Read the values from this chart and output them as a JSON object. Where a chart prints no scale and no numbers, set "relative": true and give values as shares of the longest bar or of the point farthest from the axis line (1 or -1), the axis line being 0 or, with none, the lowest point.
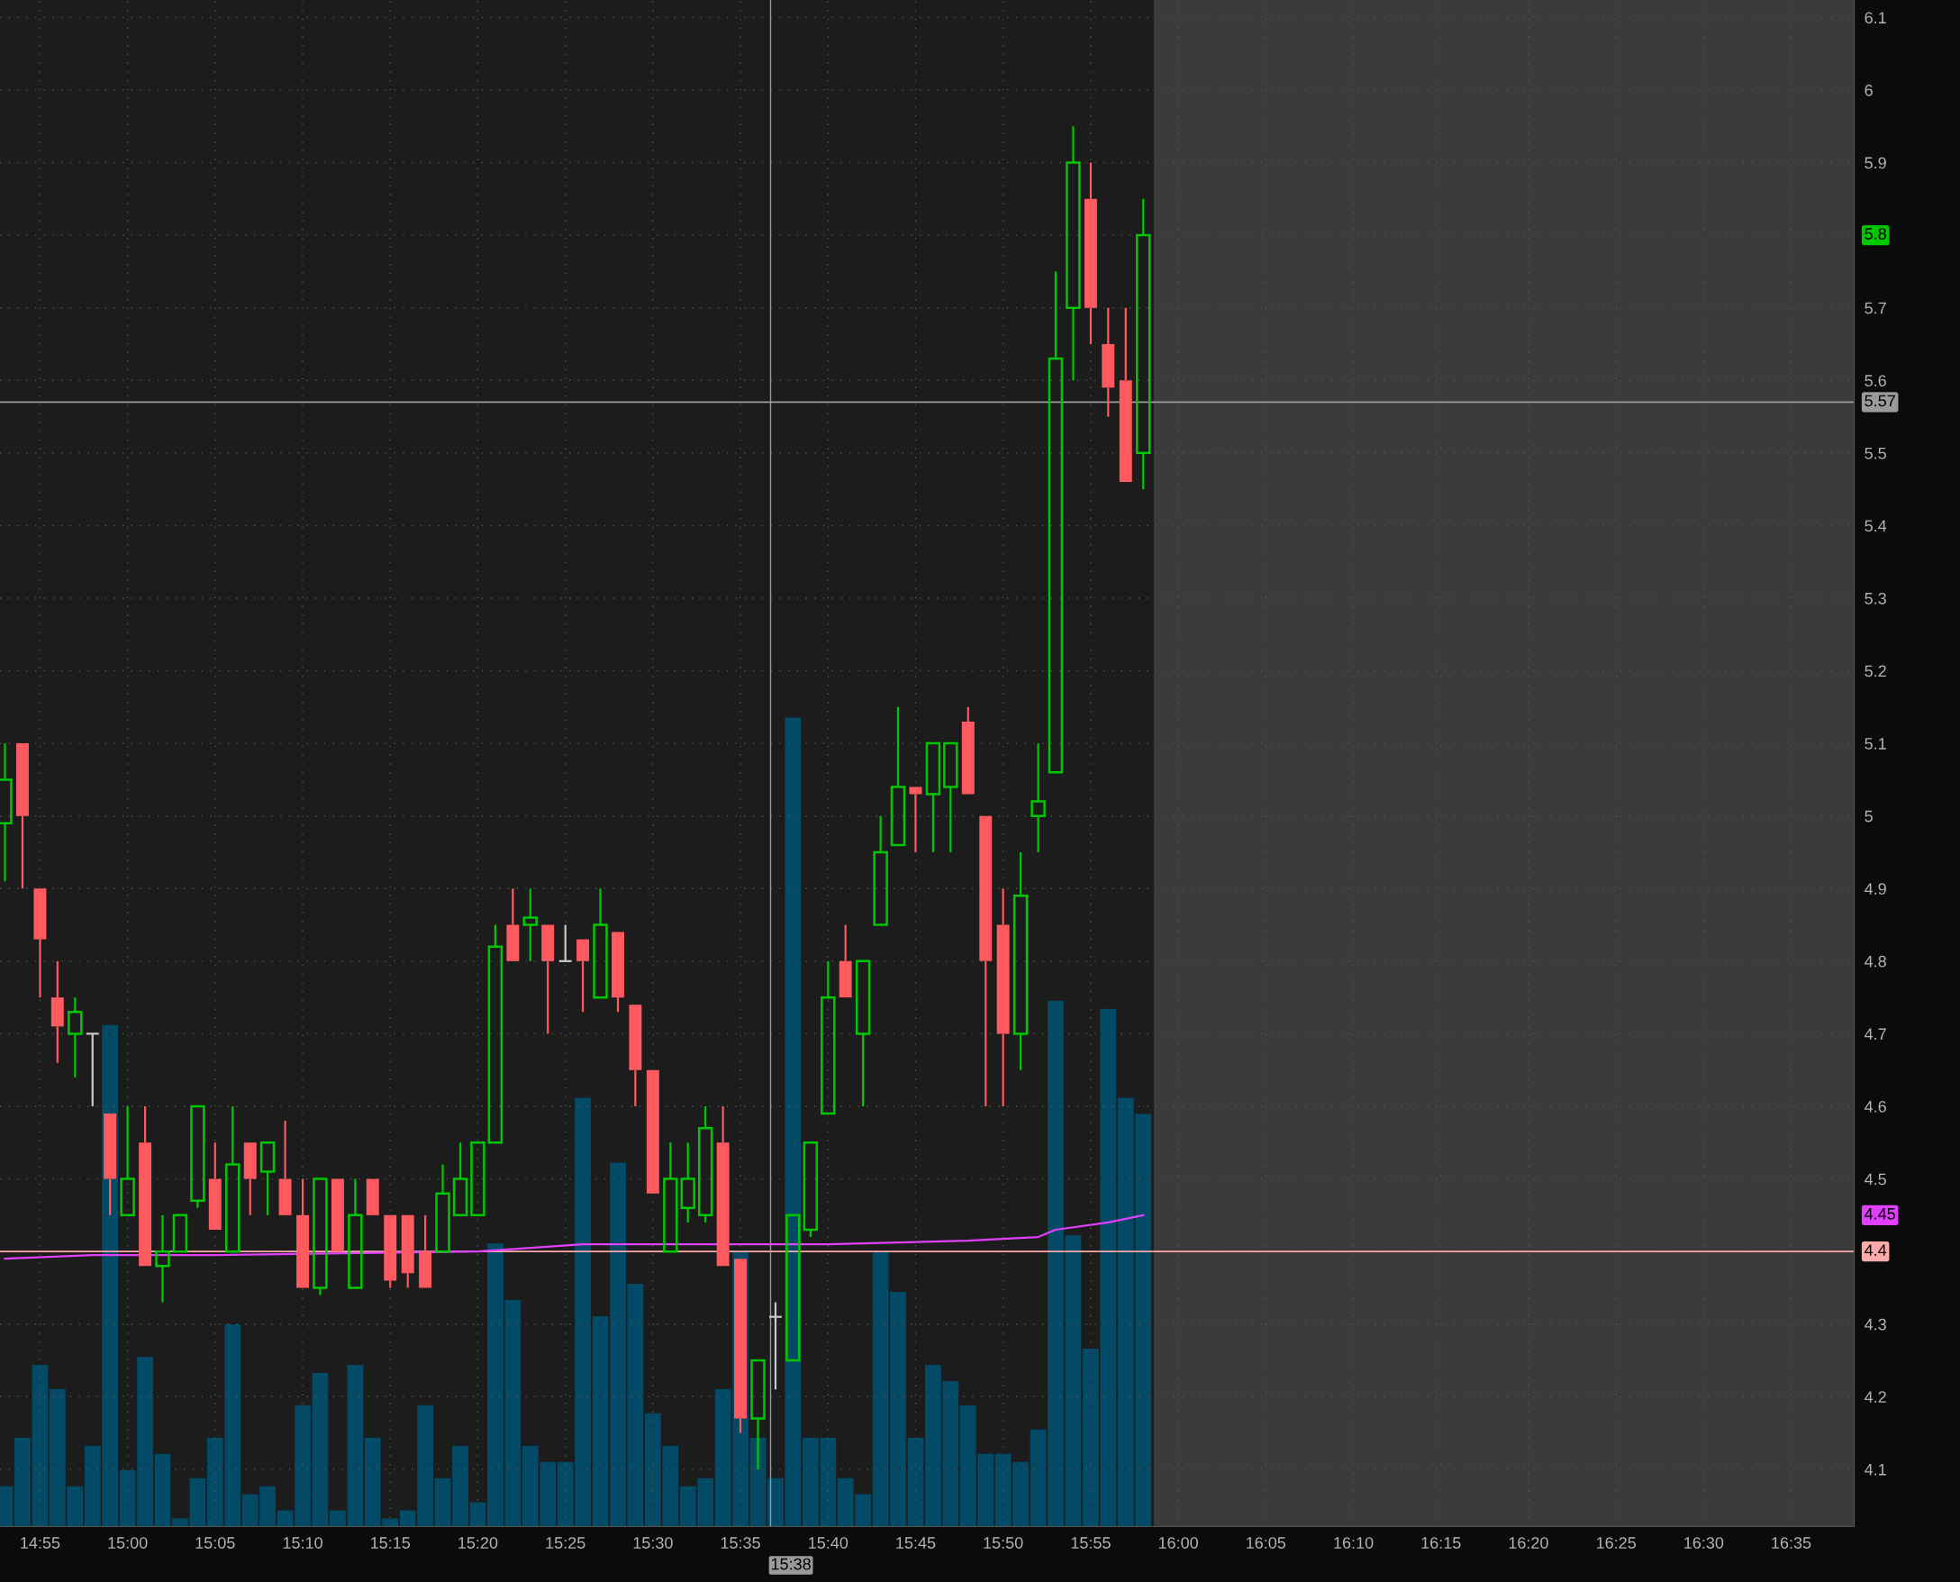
{
  "chart_data": [
    {
      "type": "candlestick",
      "x": [
        14.8833,
        14.9,
        14.9167,
        14.9333,
        14.95,
        14.9667,
        14.9833,
        15,
        15.0167,
        15.0333,
        15.05,
        15.0667,
        15.0833,
        15.1,
        15.1167,
        15.1333,
        15.15,
        15.1667,
        15.1833,
        15.2,
        15.2167,
        15.2333,
        15.25,
        15.2667,
        15.2833,
        15.3,
        15.3167,
        15.3333,
        15.35,
        15.3667,
        15.3833,
        15.4,
        15.4167,
        15.4333,
        15.45,
        15.4667,
        15.4833,
        15.5,
        15.5167,
        15.5333,
        15.55,
        15.5667,
        15.5833,
        15.6,
        15.6167,
        15.6333,
        15.65,
        15.6667,
        15.6833,
        15.7,
        15.7167,
        15.7333,
        15.75,
        15.7667,
        15.7833,
        15.8,
        15.8167,
        15.8333,
        15.85,
        15.8667,
        15.8833,
        15.9,
        15.9167,
        15.9333,
        15.95,
        15.9667
      ],
      "ohlc": [
        [
          4.99,
          5.1,
          4.91,
          5.05
        ],
        [
          5.1,
          5.1,
          4.9,
          5.0
        ],
        [
          4.9,
          4.9,
          4.75,
          4.83
        ],
        [
          4.75,
          4.8,
          4.66,
          4.71
        ],
        [
          4.7,
          4.75,
          4.64,
          4.73
        ],
        [
          4.7,
          4.7,
          4.6,
          4.7
        ],
        [
          4.59,
          4.59,
          4.45,
          4.5
        ],
        [
          4.45,
          4.6,
          4.45,
          4.5
        ],
        [
          4.55,
          4.6,
          4.38,
          4.38
        ],
        [
          4.38,
          4.45,
          4.33,
          4.4
        ],
        [
          4.4,
          4.45,
          4.4,
          4.45
        ],
        [
          4.47,
          4.6,
          4.46,
          4.6
        ],
        [
          4.5,
          4.55,
          4.43,
          4.43
        ],
        [
          4.4,
          4.6,
          4.4,
          4.52
        ],
        [
          4.55,
          4.55,
          4.45,
          4.5
        ],
        [
          4.51,
          4.55,
          4.45,
          4.55
        ],
        [
          4.5,
          4.58,
          4.45,
          4.45
        ],
        [
          4.45,
          4.5,
          4.35,
          4.35
        ],
        [
          4.35,
          4.5,
          4.34,
          4.5
        ],
        [
          4.5,
          4.5,
          4.4,
          4.4
        ],
        [
          4.35,
          4.5,
          4.35,
          4.45
        ],
        [
          4.5,
          4.5,
          4.45,
          4.45
        ],
        [
          4.45,
          4.45,
          4.35,
          4.36
        ],
        [
          4.45,
          4.45,
          4.35,
          4.37
        ],
        [
          4.4,
          4.45,
          4.35,
          4.35
        ],
        [
          4.4,
          4.52,
          4.4,
          4.48
        ],
        [
          4.45,
          4.55,
          4.45,
          4.5
        ],
        [
          4.45,
          4.55,
          4.45,
          4.55
        ],
        [
          4.55,
          4.85,
          4.55,
          4.82
        ],
        [
          4.85,
          4.9,
          4.8,
          4.8
        ],
        [
          4.85,
          4.9,
          4.8,
          4.86
        ],
        [
          4.85,
          4.85,
          4.7,
          4.8
        ],
        [
          4.8,
          4.85,
          4.8,
          4.8
        ],
        [
          4.83,
          4.83,
          4.73,
          4.8
        ],
        [
          4.75,
          4.9,
          4.75,
          4.85
        ],
        [
          4.84,
          4.84,
          4.73,
          4.75
        ],
        [
          4.74,
          4.74,
          4.6,
          4.65
        ],
        [
          4.65,
          4.65,
          4.48,
          4.48
        ],
        [
          4.4,
          4.55,
          4.4,
          4.5
        ],
        [
          4.46,
          4.55,
          4.44,
          4.5
        ],
        [
          4.45,
          4.6,
          4.44,
          4.57
        ],
        [
          4.55,
          4.6,
          4.38,
          4.38
        ],
        [
          4.39,
          4.39,
          4.15,
          4.17
        ],
        [
          4.17,
          4.25,
          4.1,
          4.25
        ],
        [
          4.31,
          4.33,
          4.21,
          4.31
        ],
        [
          4.25,
          4.45,
          4.25,
          4.45
        ],
        [
          4.43,
          4.55,
          4.42,
          4.55
        ],
        [
          4.59,
          4.8,
          4.59,
          4.75
        ],
        [
          4.8,
          4.85,
          4.75,
          4.75
        ],
        [
          4.7,
          4.8,
          4.6,
          4.8
        ],
        [
          4.85,
          5.0,
          4.85,
          4.95
        ],
        [
          4.96,
          5.15,
          4.96,
          5.04
        ],
        [
          5.04,
          5.04,
          4.95,
          5.03
        ],
        [
          5.03,
          5.1,
          4.95,
          5.1
        ],
        [
          5.04,
          5.1,
          4.95,
          5.1
        ],
        [
          5.13,
          5.15,
          5.03,
          5.03
        ],
        [
          5.0,
          5.0,
          4.6,
          4.8
        ],
        [
          4.85,
          4.9,
          4.6,
          4.7
        ],
        [
          4.7,
          4.95,
          4.65,
          4.89
        ],
        [
          5.0,
          5.1,
          4.95,
          5.02
        ],
        [
          5.06,
          5.75,
          5.06,
          5.63
        ],
        [
          5.7,
          5.95,
          5.6,
          5.9
        ],
        [
          5.85,
          5.9,
          5.65,
          5.7
        ],
        [
          5.65,
          5.7,
          5.55,
          5.59
        ],
        [
          5.6,
          5.7,
          5.46,
          5.46
        ],
        [
          5.5,
          5.85,
          5.45,
          5.8
        ]
      ],
      "colors": [
        "#00c800",
        "#ff5a5f",
        "#ff5a5f",
        "#ff5a5f",
        "#00c800",
        "#c8c8c8",
        "#ff5a5f",
        "#00c800",
        "#ff5a5f",
        "#00c800",
        "#00c800",
        "#00c800",
        "#ff5a5f",
        "#00c800",
        "#ff5a5f",
        "#00c800",
        "#ff5a5f",
        "#ff5a5f",
        "#00c800",
        "#ff5a5f",
        "#00c800",
        "#ff5a5f",
        "#ff5a5f",
        "#ff5a5f",
        "#ff5a5f",
        "#00c800",
        "#00c800",
        "#00c800",
        "#00c800",
        "#ff5a5f",
        "#00c800",
        "#ff5a5f",
        "#c8c8c8",
        "#ff5a5f",
        "#00c800",
        "#ff5a5f",
        "#ff5a5f",
        "#ff5a5f",
        "#00c800",
        "#00c800",
        "#00c800",
        "#ff5a5f",
        "#ff5a5f",
        "#00c800",
        "#c8c8c8",
        "#00c800",
        "#00c800",
        "#00c800",
        "#ff5a5f",
        "#00c800",
        "#00c800",
        "#00c800",
        "#ff5a5f",
        "#00c800",
        "#00c800",
        "#ff5a5f",
        "#ff5a5f",
        "#ff5a5f",
        "#00c800",
        "#00c800",
        "#00c800",
        "#00c800",
        "#ff5a5f",
        "#ff5a5f",
        "#ff5a5f",
        "#00c800"
      ],
      "series": [
        {
          "type": "line",
          "color": "#e040fb",
          "x": [
            14.8833,
            14.9667,
            15.0833,
            15.3333,
            15.4333,
            15.55,
            15.6667,
            15.8,
            15.8667,
            15.8833,
            15.9333,
            15.9667
          ],
          "values": [
            4.39,
            4.395,
            4.395,
            4.4,
            4.41,
            4.41,
            4.41,
            4.415,
            4.42,
            4.43,
            4.44,
            4.45
          ]
        }
      ],
      "xlim": [
        14.8786,
        16.6433
      ],
      "xticks": [
        {
          "value": 14.9167,
          "label": "14:55"
        },
        {
          "value": 15,
          "label": "15:00"
        },
        {
          "value": 15.0833,
          "label": "15:05"
        },
        {
          "value": 15.1667,
          "label": "15:10"
        },
        {
          "value": 15.25,
          "label": "15:15"
        },
        {
          "value": 15.3333,
          "label": "15:20"
        },
        {
          "value": 15.4167,
          "label": "15:25"
        },
        {
          "value": 15.5,
          "label": "15:30"
        },
        {
          "value": 15.5833,
          "label": "15:35"
        },
        {
          "value": 15.6667,
          "label": "15:40"
        },
        {
          "value": 15.75,
          "label": "15:45"
        },
        {
          "value": 15.8333,
          "label": "15:50"
        },
        {
          "value": 15.9167,
          "label": "15:55"
        },
        {
          "value": 16,
          "label": "16:00"
        },
        {
          "value": 16.0833,
          "label": "16:05"
        },
        {
          "value": 16.1667,
          "label": "16:10"
        },
        {
          "value": 16.25,
          "label": "16:15"
        },
        {
          "value": 16.3333,
          "label": "16:20"
        },
        {
          "value": 16.4167,
          "label": "16:25"
        },
        {
          "value": 16.5,
          "label": "16:30"
        },
        {
          "value": 16.5833,
          "label": "16:35"
        }
      ],
      "ylim": [
        4.021,
        6.124
      ],
      "yticks": [
        4.1,
        4.2,
        4.3,
        4.4,
        4.5,
        4.6,
        4.7,
        4.8,
        4.9,
        5,
        5.1,
        5.2,
        5.3,
        5.4,
        5.5,
        5.6,
        5.7,
        5.8,
        5.9,
        6,
        6.1
      ],
      "grid": true,
      "ref_lines": [
        {
          "axis": "y",
          "value": 4.4,
          "label": "4.4",
          "color": "#ffaaaa"
        },
        {
          "axis": "y",
          "value": 5.57,
          "label": "5.57",
          "color": "#9a9a9a"
        },
        {
          "axis": "x",
          "value": 15.612,
          "color": "#9a9a9a"
        }
      ],
      "bands": [
        {
          "axis": "x",
          "from": 15.9767,
          "to": 16.6433,
          "color": "#3b3b3b"
        }
      ],
      "annotations": [
        "5.8",
        "4.45",
        "15:38"
      ]
    },
    {
      "type": "bar",
      "relative": true,
      "color": "#034a66",
      "xlim": [
        14.8786,
        16.6433
      ],
      "x": [
        14.8833,
        14.9,
        14.9167,
        14.9333,
        14.95,
        14.9667,
        14.9833,
        15,
        15.0167,
        15.0333,
        15.05,
        15.0667,
        15.0833,
        15.1,
        15.1167,
        15.1333,
        15.15,
        15.1667,
        15.1833,
        15.2,
        15.2167,
        15.2333,
        15.25,
        15.2667,
        15.2833,
        15.3,
        15.3167,
        15.3333,
        15.35,
        15.3667,
        15.3833,
        15.4,
        15.4167,
        15.4333,
        15.45,
        15.4667,
        15.4833,
        15.5,
        15.5167,
        15.5333,
        15.55,
        15.5667,
        15.5833,
        15.6,
        15.6167,
        15.6333,
        15.65,
        15.6667,
        15.6833,
        15.7,
        15.7167,
        15.7333,
        15.75,
        15.7667,
        15.7833,
        15.8,
        15.8167,
        15.8333,
        15.85,
        15.8667,
        15.8833,
        15.9,
        15.9167,
        15.9333,
        15.95,
        15.9667
      ],
      "values": [
        0.05,
        0.11,
        0.2,
        0.17,
        0.05,
        0.1,
        0.62,
        0.07,
        0.21,
        0.09,
        0.01,
        0.06,
        0.11,
        0.25,
        0.04,
        0.05,
        0.02,
        0.15,
        0.19,
        0.02,
        0.2,
        0.11,
        0.01,
        0.02,
        0.15,
        0.06,
        0.1,
        0.03,
        0.35,
        0.28,
        0.1,
        0.08,
        0.08,
        0.53,
        0.26,
        0.45,
        0.3,
        0.14,
        0.1,
        0.05,
        0.06,
        0.17,
        0.34,
        0.11,
        0.06,
        1,
        0.11,
        0.11,
        0.06,
        0.04,
        0.34,
        0.29,
        0.11,
        0.2,
        0.18,
        0.15,
        0.09,
        0.09,
        0.08,
        0.12,
        0.65,
        0.36,
        0.22,
        0.64,
        0.53,
        0.51
      ]
    }
  ]
}
